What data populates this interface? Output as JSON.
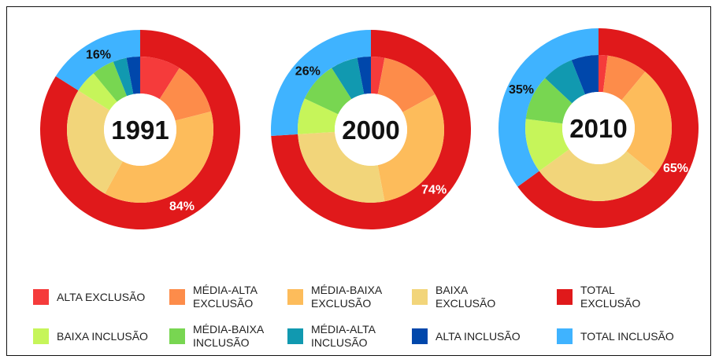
{
  "chart_data": {
    "type": "nested_donut",
    "categories": [
      "ALTA EXCLUSÃO",
      "MÉDIA-ALTA EXCLUSÃO",
      "MÉDIA-BAIXA EXCLUSÃO",
      "BAIXA EXCLUSÃO",
      "BAIXA INCLUSÃO",
      "MÉDIA-BAIXA INCLUSÃO",
      "MÉDIA-ALTA INCLUSÃO",
      "ALTA INCLUSÃO"
    ],
    "colors": [
      "#f53b3b",
      "#fd8c4a",
      "#fdbc5b",
      "#f2d57a",
      "#c6f55a",
      "#78d651",
      "#1199b0",
      "#0047ab"
    ],
    "totals": [
      "TOTAL EXCLUSÃO",
      "TOTAL INCLUSÃO"
    ],
    "total_colors": [
      "#e0191b",
      "#3fb3ff"
    ],
    "charts": [
      {
        "title": "1991",
        "values": [
          9,
          12,
          37,
          26,
          5,
          5,
          3,
          3
        ],
        "total_values": [
          84,
          16
        ],
        "total_value_labels": [
          "84%",
          "16%"
        ]
      },
      {
        "title": "2000",
        "values": [
          3,
          14,
          30,
          27,
          8,
          9,
          6,
          3
        ],
        "total_values": [
          74,
          26
        ],
        "total_value_labels": [
          "74%",
          "26%"
        ]
      },
      {
        "title": "2010",
        "values": [
          2,
          9,
          25,
          29,
          12,
          10,
          7,
          6
        ],
        "total_values": [
          65,
          35
        ],
        "total_value_labels": [
          "65%",
          "35%"
        ]
      }
    ]
  }
}
